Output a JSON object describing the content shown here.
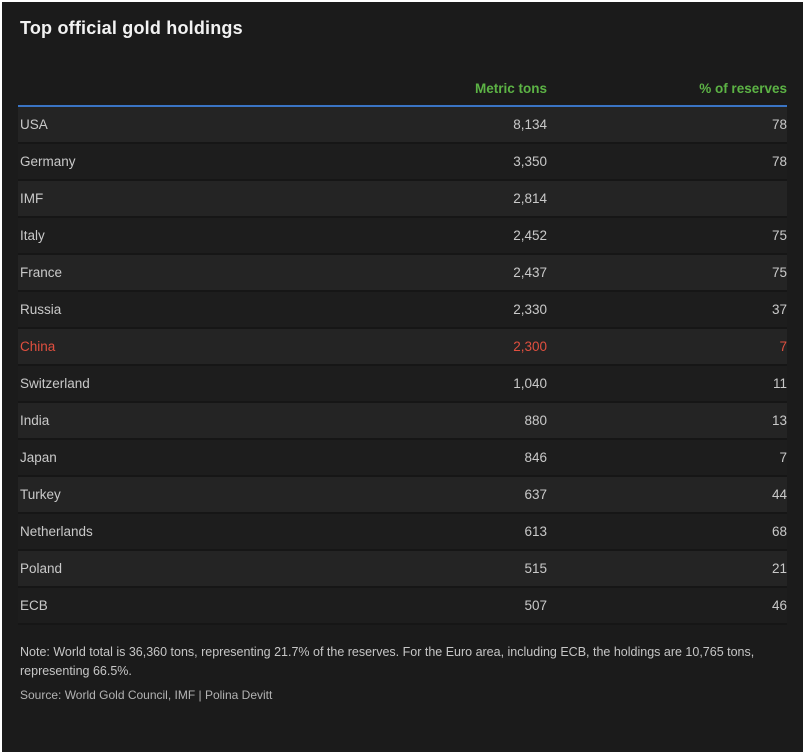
{
  "colors": {
    "background": "#1b1b1b",
    "row_light": "#242424",
    "row_dark": "#1d1d1d",
    "header_green": "#5cb345",
    "divider_blue": "#3a74c4",
    "highlight_red": "#e04f3f"
  },
  "chart_data": {
    "type": "table",
    "title": "Top official gold holdings",
    "columns": [
      "",
      "Metric tons",
      "% of reserves"
    ],
    "rows": [
      {
        "country": "USA",
        "metric_tons": "8,134",
        "pct_of_reserves": "78",
        "highlight": false
      },
      {
        "country": "Germany",
        "metric_tons": "3,350",
        "pct_of_reserves": "78",
        "highlight": false
      },
      {
        "country": "IMF",
        "metric_tons": "2,814",
        "pct_of_reserves": "",
        "highlight": false
      },
      {
        "country": "Italy",
        "metric_tons": "2,452",
        "pct_of_reserves": "75",
        "highlight": false
      },
      {
        "country": "France",
        "metric_tons": "2,437",
        "pct_of_reserves": "75",
        "highlight": false
      },
      {
        "country": "Russia",
        "metric_tons": "2,330",
        "pct_of_reserves": "37",
        "highlight": false
      },
      {
        "country": "China",
        "metric_tons": "2,300",
        "pct_of_reserves": "7",
        "highlight": true
      },
      {
        "country": "Switzerland",
        "metric_tons": "1,040",
        "pct_of_reserves": "11",
        "highlight": false
      },
      {
        "country": "India",
        "metric_tons": "880",
        "pct_of_reserves": "13",
        "highlight": false
      },
      {
        "country": "Japan",
        "metric_tons": "846",
        "pct_of_reserves": "7",
        "highlight": false
      },
      {
        "country": "Turkey",
        "metric_tons": "637",
        "pct_of_reserves": "44",
        "highlight": false
      },
      {
        "country": "Netherlands",
        "metric_tons": "613",
        "pct_of_reserves": "68",
        "highlight": false
      },
      {
        "country": "Poland",
        "metric_tons": "515",
        "pct_of_reserves": "21",
        "highlight": false
      },
      {
        "country": "ECB",
        "metric_tons": "507",
        "pct_of_reserves": "46",
        "highlight": false
      }
    ],
    "note": "Note: World total is 36,360 tons, representing 21.7% of the reserves. For the Euro area, including ECB, the holdings are 10,765 tons, representing 66.5%.",
    "source": "Source: World Gold Council, IMF | Polina Devitt"
  }
}
